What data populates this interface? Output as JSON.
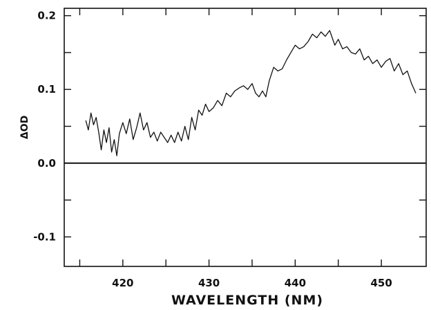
{
  "chart_data": {
    "type": "line",
    "title": "",
    "xlabel": "WAVELENGTH (NM)",
    "ylabel": "ΔOD",
    "xlim": [
      413.2,
      455.2
    ],
    "ylim": [
      -0.14,
      0.21
    ],
    "x_ticks": [
      420,
      430,
      440,
      450
    ],
    "x_tick_labels": [
      "420",
      "430",
      "440",
      "450"
    ],
    "x_minor_ticks": [
      415,
      425,
      435,
      445
    ],
    "y_ticks": [
      -0.1,
      0.0,
      0.1,
      0.2
    ],
    "y_tick_labels": [
      "-0.1",
      "0.0",
      "0.1",
      "0.2"
    ],
    "y_minor_ticks": [
      -0.05,
      0.05,
      0.15
    ],
    "grid": false,
    "zero_line": 0.0,
    "colors": {
      "line": "#111111",
      "axis": "#111111",
      "background": "#ffffff"
    },
    "series": [
      {
        "x": [
          415.7,
          416.0,
          416.3,
          416.6,
          416.9,
          417.2,
          417.5,
          417.8,
          418.1,
          418.4,
          418.7,
          419.0,
          419.3,
          419.6,
          420.0,
          420.4,
          420.8,
          421.2,
          421.6,
          422.0,
          422.4,
          422.8,
          423.2,
          423.6,
          424.0,
          424.4,
          424.8,
          425.2,
          425.6,
          426.0,
          426.4,
          426.8,
          427.2,
          427.6,
          428.0,
          428.4,
          428.8,
          429.2,
          429.6,
          430.0,
          430.5,
          431.0,
          431.5,
          432.0,
          432.5,
          433.0,
          433.5,
          434.0,
          434.5,
          435.0,
          435.4,
          435.8,
          436.2,
          436.6,
          437.0,
          437.5,
          438.0,
          438.5,
          439.0,
          439.5,
          440.0,
          440.5,
          441.0,
          441.5,
          442.0,
          442.5,
          443.0,
          443.5,
          444.0,
          444.3,
          444.6,
          445.0,
          445.5,
          446.0,
          446.5,
          447.0,
          447.5,
          448.0,
          448.5,
          449.0,
          449.5,
          450.0,
          450.5,
          451.0,
          451.5,
          452.0,
          452.5,
          453.0,
          453.5,
          454.0
        ],
        "values": [
          0.058,
          0.045,
          0.068,
          0.052,
          0.062,
          0.042,
          0.018,
          0.045,
          0.028,
          0.048,
          0.015,
          0.032,
          0.01,
          0.04,
          0.055,
          0.04,
          0.06,
          0.032,
          0.048,
          0.068,
          0.045,
          0.055,
          0.035,
          0.042,
          0.03,
          0.042,
          0.035,
          0.028,
          0.038,
          0.028,
          0.042,
          0.03,
          0.05,
          0.032,
          0.062,
          0.045,
          0.072,
          0.065,
          0.08,
          0.07,
          0.075,
          0.085,
          0.078,
          0.095,
          0.09,
          0.098,
          0.102,
          0.105,
          0.1,
          0.108,
          0.095,
          0.09,
          0.098,
          0.09,
          0.112,
          0.13,
          0.125,
          0.128,
          0.14,
          0.15,
          0.16,
          0.155,
          0.158,
          0.165,
          0.175,
          0.17,
          0.178,
          0.172,
          0.18,
          0.17,
          0.16,
          0.168,
          0.155,
          0.158,
          0.15,
          0.148,
          0.155,
          0.14,
          0.145,
          0.135,
          0.14,
          0.13,
          0.138,
          0.142,
          0.125,
          0.135,
          0.12,
          0.125,
          0.108,
          0.095
        ]
      }
    ]
  }
}
